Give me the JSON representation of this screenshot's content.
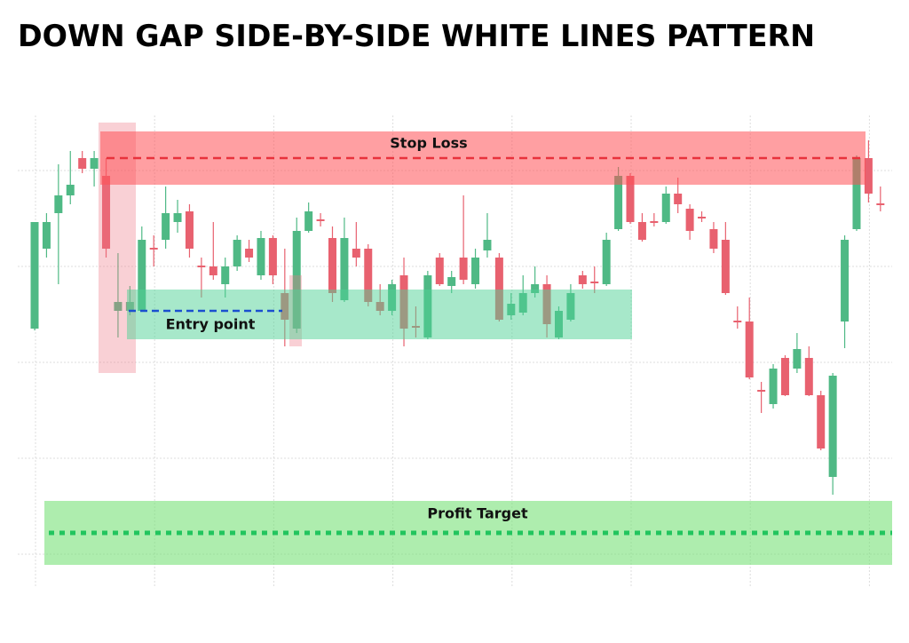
{
  "chart_data": {
    "type": "candlestick",
    "title": "DOWN GAP SIDE-BY-SIDE WHITE LINES PATTERN",
    "open": [
      330,
      420,
      460,
      480,
      522,
      510,
      502,
      350,
      350,
      350,
      421,
      430,
      450,
      462,
      401,
      400,
      380,
      400,
      420,
      390,
      432,
      370,
      330,
      440,
      453,
      432,
      362,
      420,
      420,
      360,
      350,
      390,
      333,
      320,
      410,
      378,
      410,
      380,
      418,
      410,
      345,
      348,
      370,
      380,
      320,
      340,
      390,
      383,
      380,
      442,
      502,
      450,
      451,
      450,
      482,
      465,
      456,
      442,
      430,
      339,
      338,
      261,
      245,
      297,
      285,
      297,
      255,
      163,
      338,
      442,
      522,
      471
    ],
    "high": [
      450,
      460,
      515,
      530,
      530,
      530,
      522,
      415,
      378,
      445,
      435,
      490,
      475,
      470,
      410,
      450,
      410,
      435,
      430,
      440,
      435,
      420,
      455,
      472,
      460,
      445,
      455,
      450,
      425,
      380,
      385,
      410,
      355,
      395,
      415,
      395,
      480,
      420,
      460,
      415,
      370,
      390,
      400,
      390,
      355,
      380,
      395,
      400,
      438,
      512,
      505,
      460,
      460,
      490,
      500,
      470,
      462,
      450,
      450,
      355,
      365,
      270,
      290,
      300,
      325,
      310,
      260,
      280,
      435,
      525,
      542,
      490
    ],
    "low": [
      328,
      410,
      380,
      470,
      505,
      490,
      410,
      320,
      345,
      350,
      400,
      420,
      438,
      410,
      365,
      385,
      365,
      395,
      405,
      385,
      380,
      310,
      325,
      438,
      445,
      360,
      360,
      400,
      355,
      345,
      345,
      310,
      320,
      318,
      378,
      370,
      380,
      375,
      410,
      338,
      340,
      345,
      365,
      320,
      318,
      338,
      375,
      370,
      378,
      440,
      448,
      428,
      445,
      448,
      460,
      430,
      450,
      415,
      368,
      330,
      273,
      235,
      240,
      254,
      280,
      254,
      193,
      143,
      308,
      440,
      472,
      462
    ],
    "close": [
      450,
      450,
      480,
      492,
      510,
      522,
      420,
      360,
      360,
      430,
      419,
      460,
      460,
      420,
      399,
      390,
      400,
      430,
      410,
      432,
      390,
      340,
      440,
      462,
      451,
      370,
      432,
      410,
      360,
      350,
      380,
      330,
      331,
      390,
      380,
      388,
      385,
      410,
      430,
      340,
      358,
      370,
      380,
      335,
      350,
      370,
      380,
      381,
      430,
      502,
      450,
      430,
      449,
      482,
      470,
      440,
      454,
      420,
      370,
      337,
      275,
      259,
      285,
      255,
      307,
      255,
      195,
      277,
      430,
      522,
      482,
      469
    ],
    "up_color": "#4fb985",
    "down_color": "#e8616f",
    "ylim": [
      40,
      570
    ],
    "yticks": [
      76,
      184,
      292,
      400,
      508
    ],
    "grid": true,
    "annotations": [
      {
        "text": "Stop Loss",
        "value": 522,
        "color": "#e8323c"
      },
      {
        "text": "Entry point",
        "value": 350,
        "color": "#1a4fd0"
      },
      {
        "text": "Profit Target",
        "value": 100,
        "color": "#22c55e"
      }
    ]
  }
}
